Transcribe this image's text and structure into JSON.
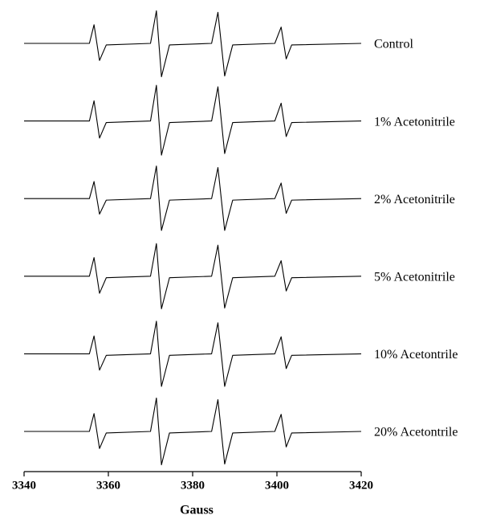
{
  "chart_data": {
    "type": "line",
    "xlabel": "Gauss",
    "xlim": [
      3340,
      3420
    ],
    "xticks": [
      3340,
      3360,
      3380,
      3400,
      3420
    ],
    "ylim": [
      -50,
      50
    ],
    "color": "#000000",
    "x": [
      3340,
      3355.5,
      3356.6,
      3357.9,
      3359.5,
      3370,
      3371.4,
      3372.6,
      3374.5,
      3384.5,
      3386,
      3387.6,
      3389.5,
      3399.5,
      3401,
      3402.2,
      3403.5,
      3420
    ],
    "series": [
      {
        "name": "Control",
        "values": [
          0,
          0,
          24,
          -22,
          -2,
          0,
          42,
          -43,
          -2,
          0,
          40,
          -42,
          -2,
          0,
          21,
          -20,
          -2,
          0
        ]
      },
      {
        "name": "1% Acetonitrile",
        "values": [
          0,
          0,
          26,
          -22,
          -2,
          0,
          46,
          -44,
          -2,
          0,
          44,
          -42,
          -2,
          0,
          23,
          -20,
          -2,
          0
        ]
      },
      {
        "name": "2% Acetonitrile",
        "values": [
          0,
          0,
          22,
          -20,
          -2,
          0,
          42,
          -41,
          -2,
          0,
          40,
          -41,
          -2,
          0,
          20,
          -19,
          -2,
          0
        ]
      },
      {
        "name": "5% Acetonitrile",
        "values": [
          0,
          0,
          24,
          -22,
          -2,
          0,
          42,
          -42,
          -2,
          0,
          40,
          -41,
          -2,
          0,
          20,
          -19,
          -2,
          0
        ]
      },
      {
        "name": "10% Acetontrile",
        "values": [
          0,
          0,
          23,
          -21,
          -2,
          0,
          42,
          -42,
          -2,
          0,
          40,
          -42,
          -2,
          0,
          22,
          -19,
          -2,
          0
        ]
      },
      {
        "name": "20% Acetontrile",
        "values": [
          0,
          0,
          23,
          -22,
          -2,
          0,
          43,
          -43,
          -2,
          0,
          41,
          -42,
          -2,
          0,
          22,
          -20,
          -2,
          0
        ]
      }
    ]
  }
}
